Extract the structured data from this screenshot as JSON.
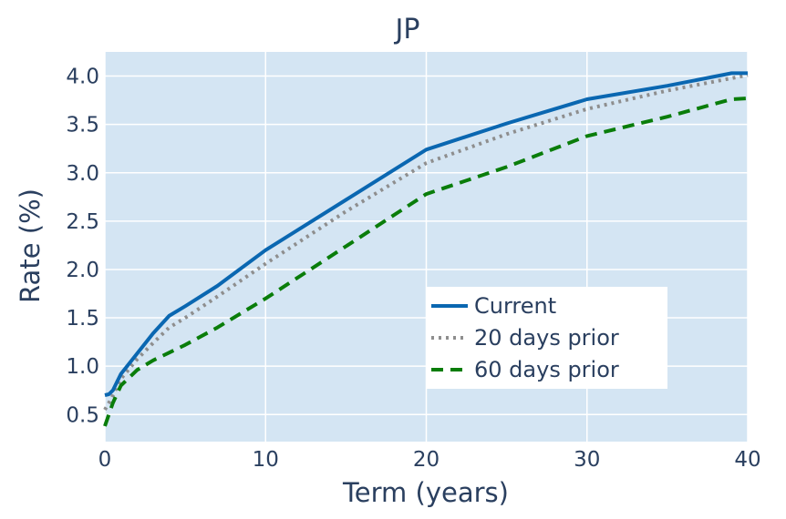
{
  "chart_data": {
    "type": "line",
    "title": "JP",
    "xlabel": "Term (years)",
    "ylabel": "Rate (%)",
    "xlim": [
      0,
      40
    ],
    "ylim": [
      0.22,
      4.25
    ],
    "x_ticks": [
      0,
      10,
      20,
      30,
      40
    ],
    "y_ticks": [
      0.5,
      1.0,
      1.5,
      2.0,
      2.5,
      3.0,
      3.5,
      4.0
    ],
    "grid": true,
    "legend_position": "bottom-right",
    "background_color": "#d4e5f3",
    "series": [
      {
        "name": "Current",
        "color": "#0a67b1",
        "style": "solid",
        "x": [
          0,
          0.25,
          0.5,
          1,
          2,
          3,
          4,
          5,
          7,
          10,
          15,
          20,
          25,
          30,
          35,
          39,
          40
        ],
        "y": [
          0.7,
          0.71,
          0.75,
          0.92,
          1.13,
          1.34,
          1.52,
          1.62,
          1.83,
          2.2,
          2.72,
          3.24,
          3.51,
          3.76,
          3.9,
          4.03,
          4.03
        ]
      },
      {
        "name": "20 days prior",
        "color": "#8e8e8e",
        "style": "dotted",
        "x": [
          0,
          0.25,
          0.5,
          1,
          2,
          3,
          4,
          5,
          7,
          10,
          15,
          20,
          25,
          30,
          35,
          40
        ],
        "y": [
          0.55,
          0.62,
          0.7,
          0.87,
          1.07,
          1.24,
          1.4,
          1.5,
          1.72,
          2.06,
          2.6,
          3.1,
          3.4,
          3.66,
          3.85,
          4.01
        ]
      },
      {
        "name": "60 days prior",
        "color": "#0a7d0a",
        "style": "dashed",
        "x": [
          0,
          0.25,
          0.5,
          1,
          2,
          3,
          4,
          5,
          7,
          10,
          15,
          20,
          25,
          30,
          35,
          39,
          40
        ],
        "y": [
          0.38,
          0.5,
          0.62,
          0.8,
          0.96,
          1.06,
          1.14,
          1.22,
          1.4,
          1.7,
          2.24,
          2.78,
          3.06,
          3.38,
          3.58,
          3.76,
          3.77
        ]
      }
    ]
  }
}
